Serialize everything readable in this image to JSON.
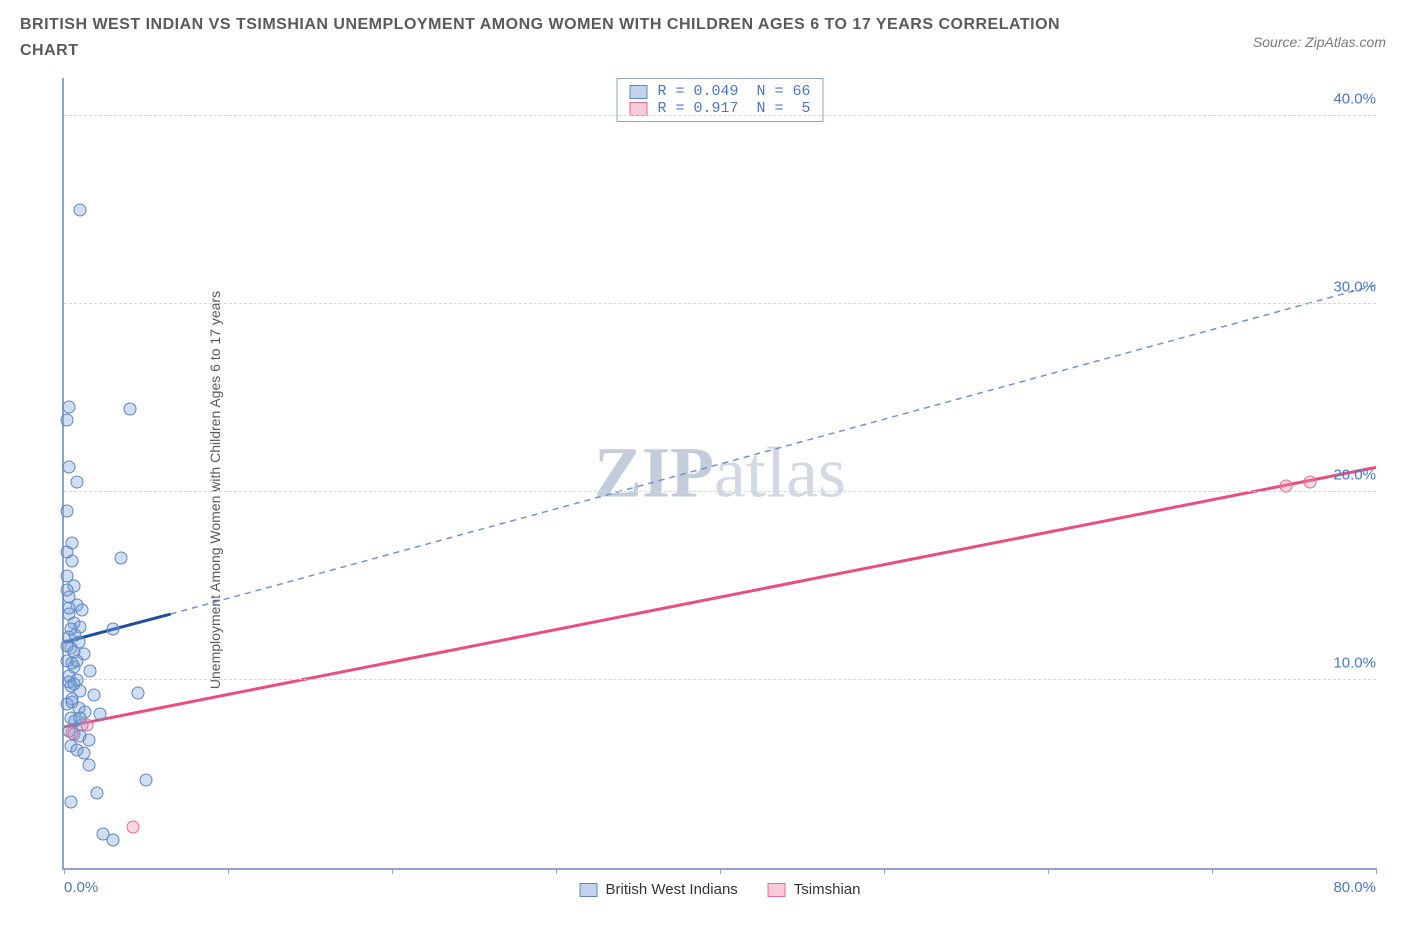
{
  "header": {
    "title": "BRITISH WEST INDIAN VS TSIMSHIAN UNEMPLOYMENT AMONG WOMEN WITH CHILDREN AGES 6 TO 17 YEARS CORRELATION CHART",
    "source": "Source: ZipAtlas.com"
  },
  "chart": {
    "type": "scatter",
    "ylabel": "Unemployment Among Women with Children Ages 6 to 17 years",
    "xlim": [
      0,
      80
    ],
    "ylim": [
      0,
      42
    ],
    "xtick_positions": [
      0,
      10,
      20,
      30,
      40,
      50,
      60,
      70,
      80
    ],
    "xtick_labels": {
      "0": "0.0%",
      "80": "80.0%"
    },
    "ytick_positions": [
      10,
      20,
      30,
      40
    ],
    "ytick_labels": {
      "10": "10.0%",
      "20": "20.0%",
      "30": "30.0%",
      "40": "40.0%"
    },
    "grid_color": "#cfd8e6",
    "axis_color": "#8aa5c8",
    "label_color": "#4a78c4",
    "background_color": "#ffffff",
    "marker_size": 13,
    "watermark_prefix": "ZIP",
    "watermark_suffix": "atlas",
    "series": [
      {
        "name": "British West Indians",
        "color_fill": "rgba(120,160,215,0.35)",
        "color_stroke": "#5e86c0",
        "class": "blue",
        "R": "0.049",
        "N": "66",
        "points": [
          [
            1.0,
            35.0
          ],
          [
            0.3,
            24.5
          ],
          [
            4.0,
            24.4
          ],
          [
            0.2,
            23.8
          ],
          [
            0.8,
            20.5
          ],
          [
            0.2,
            19.0
          ],
          [
            0.5,
            16.3
          ],
          [
            3.5,
            16.5
          ],
          [
            0.2,
            15.5
          ],
          [
            0.6,
            15.0
          ],
          [
            0.3,
            14.4
          ],
          [
            0.8,
            14.0
          ],
          [
            0.3,
            13.5
          ],
          [
            0.6,
            13.0
          ],
          [
            1.0,
            12.8
          ],
          [
            3.0,
            12.7
          ],
          [
            0.3,
            12.3
          ],
          [
            0.9,
            12.0
          ],
          [
            0.4,
            11.7
          ],
          [
            1.2,
            11.4
          ],
          [
            0.2,
            11.0
          ],
          [
            0.6,
            10.7
          ],
          [
            1.6,
            10.5
          ],
          [
            0.3,
            10.2
          ],
          [
            0.8,
            10.0
          ],
          [
            0.4,
            9.7
          ],
          [
            1.0,
            9.4
          ],
          [
            1.8,
            9.2
          ],
          [
            0.5,
            9.0
          ],
          [
            0.2,
            8.7
          ],
          [
            0.9,
            8.5
          ],
          [
            1.3,
            8.3
          ],
          [
            2.2,
            8.2
          ],
          [
            0.4,
            8.0
          ],
          [
            0.7,
            7.8
          ],
          [
            1.1,
            7.6
          ],
          [
            4.5,
            9.3
          ],
          [
            0.3,
            7.3
          ],
          [
            0.6,
            7.1
          ],
          [
            1.0,
            7.0
          ],
          [
            1.5,
            6.8
          ],
          [
            0.4,
            6.5
          ],
          [
            0.8,
            6.3
          ],
          [
            1.2,
            6.1
          ],
          [
            0.2,
            11.8
          ],
          [
            0.5,
            10.9
          ],
          [
            0.3,
            13.8
          ],
          [
            0.7,
            12.4
          ],
          [
            0.4,
            3.5
          ],
          [
            2.4,
            1.8
          ],
          [
            3.0,
            1.5
          ],
          [
            2.0,
            4.0
          ],
          [
            1.5,
            5.5
          ],
          [
            5.0,
            4.7
          ],
          [
            0.2,
            16.8
          ],
          [
            0.5,
            17.3
          ],
          [
            0.3,
            21.3
          ],
          [
            0.5,
            8.8
          ],
          [
            1.0,
            8.0
          ],
          [
            0.6,
            11.5
          ],
          [
            0.3,
            9.9
          ],
          [
            0.8,
            11.0
          ],
          [
            0.4,
            12.7
          ],
          [
            0.2,
            14.8
          ],
          [
            0.6,
            9.8
          ],
          [
            1.1,
            13.7
          ]
        ],
        "trend": {
          "x1": 0,
          "y1": 12.0,
          "x2": 6.5,
          "y2": 13.5,
          "stroke": "#1e4ea0",
          "width": 3,
          "dash": "none"
        },
        "trend_ext": {
          "x1": 6.5,
          "y1": 13.5,
          "x2": 80,
          "y2": 31.0,
          "stroke": "#6f94cf",
          "width": 1.5,
          "dash": "6 5"
        }
      },
      {
        "name": "Tsimshian",
        "color_fill": "rgba(240,140,170,0.35)",
        "color_stroke": "#e66a94",
        "class": "pink",
        "R": "0.917",
        "N": "5",
        "points": [
          [
            0.5,
            7.2
          ],
          [
            1.4,
            7.6
          ],
          [
            4.2,
            2.2
          ],
          [
            74.5,
            20.3
          ],
          [
            76.0,
            20.5
          ]
        ],
        "trend": {
          "x1": 0,
          "y1": 7.5,
          "x2": 80,
          "y2": 21.3,
          "stroke": "#e94e7f",
          "width": 3,
          "dash": "none"
        }
      }
    ],
    "stats_box": {
      "rows": [
        {
          "swatch": "blue",
          "text": "R = 0.049  N = 66"
        },
        {
          "swatch": "pink",
          "text": "R = 0.917  N =  5"
        }
      ]
    },
    "legend": [
      {
        "swatch": "blue",
        "label": "British West Indians"
      },
      {
        "swatch": "pink",
        "label": "Tsimshian"
      }
    ]
  }
}
